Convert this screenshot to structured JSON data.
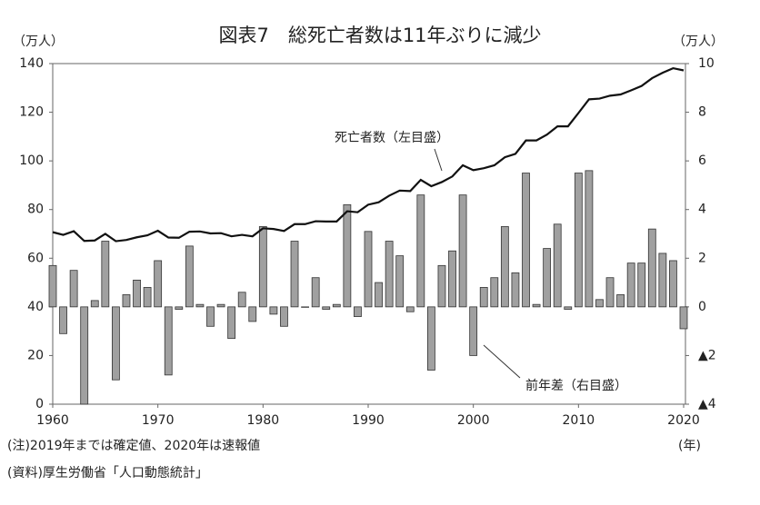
{
  "chart_data": {
    "type": "combo",
    "title": "図表7　総死亡者数は11年ぶりに減少",
    "ylabel": "（万人）",
    "y2label": "（万人）",
    "xlabel": "(年)",
    "notes": [
      "(注)2019年までは確定値、2020年は速報値",
      "(資料)厚生労働省「人口動態統計」"
    ],
    "x": [
      1960,
      1961,
      1962,
      1963,
      1964,
      1965,
      1966,
      1967,
      1968,
      1969,
      1970,
      1971,
      1972,
      1973,
      1974,
      1975,
      1976,
      1977,
      1978,
      1979,
      1980,
      1981,
      1982,
      1983,
      1984,
      1985,
      1986,
      1987,
      1988,
      1989,
      1990,
      1991,
      1992,
      1993,
      1994,
      1995,
      1996,
      1997,
      1998,
      1999,
      2000,
      2001,
      2002,
      2003,
      2004,
      2005,
      2006,
      2007,
      2008,
      2009,
      2010,
      2011,
      2012,
      2013,
      2014,
      2015,
      2016,
      2017,
      2018,
      2019,
      2020
    ],
    "series": [
      {
        "name": "死亡者数（左目盛）",
        "kind": "line",
        "color": "#111111",
        "values": [
          70.7,
          69.6,
          71.1,
          67.1,
          67.3,
          70.0,
          67.0,
          67.5,
          68.6,
          69.4,
          71.3,
          68.5,
          68.4,
          70.9,
          71.0,
          70.2,
          70.3,
          69.0,
          69.6,
          69.0,
          72.3,
          72.0,
          71.2,
          74.0,
          74.0,
          75.2,
          75.1,
          75.1,
          79.3,
          78.9,
          82.0,
          83.0,
          85.7,
          87.8,
          87.6,
          92.2,
          89.6,
          91.3,
          93.6,
          98.2,
          96.2,
          97.0,
          98.2,
          101.5,
          102.9,
          108.4,
          108.4,
          110.8,
          114.2,
          114.2,
          119.7,
          125.3,
          125.6,
          126.8,
          127.3,
          129.0,
          130.8,
          134.0,
          136.2,
          138.1,
          137.2
        ]
      },
      {
        "name": "前年差（右目盛）",
        "kind": "bar",
        "axis": "y2",
        "color": "#a0a0a0",
        "values": [
          1.7,
          -1.1,
          1.5,
          -4.0,
          0.26,
          2.7,
          -3.0,
          0.5,
          1.1,
          0.8,
          1.9,
          -2.8,
          -0.1,
          2.5,
          0.1,
          -0.8,
          0.1,
          -1.3,
          0.6,
          -0.6,
          3.3,
          -0.3,
          -0.8,
          2.7,
          0.0,
          1.2,
          -0.1,
          0.1,
          4.2,
          -0.4,
          3.1,
          1.0,
          2.7,
          2.1,
          -0.2,
          4.6,
          -2.6,
          1.7,
          2.3,
          4.6,
          -2.0,
          0.8,
          1.2,
          3.3,
          1.4,
          5.5,
          0.1,
          2.4,
          3.4,
          -0.1,
          5.5,
          5.6,
          0.3,
          1.2,
          0.5,
          1.8,
          1.8,
          3.2,
          2.2,
          1.9,
          -0.9
        ]
      }
    ],
    "xlim": [
      1960,
      2020
    ],
    "xticks": [
      1960,
      1970,
      1980,
      1990,
      2000,
      2010,
      2020
    ],
    "ylim": [
      0,
      140
    ],
    "yticks": [
      0,
      20,
      40,
      60,
      80,
      100,
      120,
      140
    ],
    "y2lim": [
      -4,
      10
    ],
    "y2ticks": [
      {
        "value": -4,
        "label": "▲4"
      },
      {
        "value": -2,
        "label": "▲2"
      },
      0,
      2,
      4,
      6,
      8,
      10
    ]
  }
}
